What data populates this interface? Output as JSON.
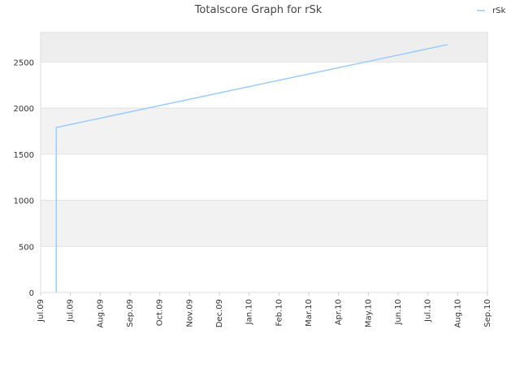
{
  "chart_data": {
    "type": "line",
    "title": "Totalscore Graph for rSk",
    "xlabel": "",
    "ylabel": "",
    "x_tick_labels": [
      "Jul.09",
      "Jul.09",
      "Aug.09",
      "Sep.09",
      "Oct.09",
      "Nov.09",
      "Dec.09",
      "Jan.10",
      "Feb.10",
      "Mar.10",
      "Apr.10",
      "May.10",
      "Jun.10",
      "Jul.10",
      "Aug.10",
      "Sep.10"
    ],
    "y_ticks": [
      0,
      500,
      1000,
      1500,
      2000,
      2500
    ],
    "ylim": [
      0,
      2820
    ],
    "grid": true,
    "band_colors": [
      "#ffffff",
      "#f2f2f2"
    ],
    "top_band_color": "#eeeeee",
    "legend_position": "top-right",
    "series": [
      {
        "name": "rSk",
        "color": "#99ccff",
        "x": [
          "2009-07-16",
          "2009-07-16",
          "2010-08-20"
        ],
        "y": [
          0,
          1790,
          2690
        ]
      }
    ]
  }
}
